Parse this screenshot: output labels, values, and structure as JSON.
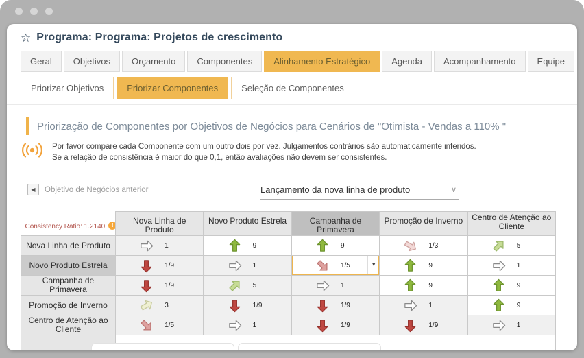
{
  "window": {
    "title": "Programa: Programa: Projetos de crescimento"
  },
  "tabs": [
    {
      "label": "Geral",
      "active": false
    },
    {
      "label": "Objetivos",
      "active": false
    },
    {
      "label": "Orçamento",
      "active": false
    },
    {
      "label": "Componentes",
      "active": false
    },
    {
      "label": "Alinhamento Estratégico",
      "active": true
    },
    {
      "label": "Agenda",
      "active": false
    },
    {
      "label": "Acompanhamento",
      "active": false
    },
    {
      "label": "Equipe",
      "active": false
    }
  ],
  "subtabs": [
    {
      "label": "Priorizar Objetivos",
      "active": false
    },
    {
      "label": "Priorizar Componentes",
      "active": true
    },
    {
      "label": "Seleção de Componentes",
      "active": false
    }
  ],
  "section": {
    "heading": "Priorização de Componentes por Objetivos de Negócios para Cenários de \"Otimista - Vendas a 110% \"",
    "instruction_line1": "Por favor compare cada Componente com um outro dois por vez. Julgamentos contrários são automaticamente inferidos.",
    "instruction_line2": "Se a relação de consistência é maior do que 0,1, então avaliações não devem ser consistentes."
  },
  "controls": {
    "prev_button_label": "Objetivo de Negócios anterior",
    "dropdown_value": "Lançamento da nova linha de produto"
  },
  "matrix": {
    "consistency_label": "Consistency Ratio: 1.2140",
    "columns": [
      "Nova Linha de Produto",
      "Novo Produto Estrela",
      "Campanha de Primavera",
      "Promoção de Inverno",
      "Centro de Atenção ao Cliente"
    ],
    "rows": [
      "Nova Linha de Produto",
      "Novo Produto Estrela",
      "Campanha de Primavera",
      "Promoção de Inverno",
      "Centro de Atenção ao Cliente"
    ],
    "selected": {
      "row": 1,
      "col": 2
    },
    "cells": [
      [
        "1",
        "9",
        "9",
        "1/3",
        "5"
      ],
      [
        "1/9",
        "1",
        "1/5",
        "9",
        "1"
      ],
      [
        "1/9",
        "5",
        "1",
        "9",
        "9"
      ],
      [
        "3",
        "1/9",
        "1/9",
        "1",
        "9"
      ],
      [
        "1/5",
        "1",
        "1/9",
        "1/9",
        "1"
      ]
    ],
    "arrow_styles": {
      "9": {
        "rot": -90,
        "fill": "#8fb93e",
        "stroke": "#6e9430"
      },
      "5": {
        "rot": -45,
        "fill": "#c7dc96",
        "stroke": "#9cb86a"
      },
      "3": {
        "rot": -30,
        "fill": "#eff0d2",
        "stroke": "#c6c99b"
      },
      "1": {
        "rot": 0,
        "fill": "#fdfdfd",
        "stroke": "#8a8a8a"
      },
      "1/3": {
        "rot": 30,
        "fill": "#f3d9d7",
        "stroke": "#cfa3a0"
      },
      "1/5": {
        "rot": 45,
        "fill": "#dfa2a0",
        "stroke": "#bd7673"
      },
      "1/9": {
        "rot": 90,
        "fill": "#bf4741",
        "stroke": "#96332e"
      }
    }
  },
  "colors": {
    "accent_orange": "#f0b851",
    "backdrop_gray": "#b1b1b1",
    "title_navy": "#35495c",
    "heading_gray": "#7d8b99",
    "consistency_red": "#b2544c",
    "warning_orange": "#f6a83b"
  }
}
